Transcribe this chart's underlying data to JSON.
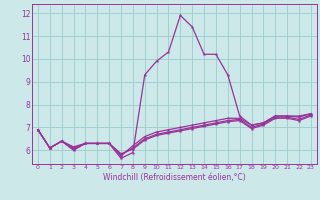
{
  "x": [
    0,
    1,
    2,
    3,
    4,
    5,
    6,
    7,
    8,
    9,
    10,
    11,
    12,
    13,
    14,
    15,
    16,
    17,
    18,
    19,
    20,
    21,
    22,
    23
  ],
  "line1": [
    6.9,
    6.1,
    6.4,
    6.0,
    6.3,
    6.3,
    6.3,
    5.65,
    5.9,
    9.3,
    9.9,
    10.3,
    11.9,
    11.4,
    10.2,
    10.2,
    9.3,
    7.5,
    7.1,
    7.2,
    7.5,
    7.5,
    7.5,
    7.6
  ],
  "line2": [
    6.9,
    6.1,
    6.4,
    6.05,
    6.3,
    6.3,
    6.3,
    5.75,
    6.2,
    6.6,
    6.8,
    6.9,
    7.0,
    7.1,
    7.2,
    7.3,
    7.4,
    7.4,
    7.1,
    7.2,
    7.5,
    7.5,
    7.45,
    7.6
  ],
  "line3": [
    6.9,
    6.1,
    6.4,
    6.1,
    6.3,
    6.3,
    6.3,
    5.8,
    6.1,
    6.5,
    6.7,
    6.8,
    6.9,
    7.0,
    7.1,
    7.2,
    7.3,
    7.35,
    7.0,
    7.15,
    7.45,
    7.45,
    7.35,
    7.55
  ],
  "line4": [
    6.9,
    6.1,
    6.4,
    6.15,
    6.3,
    6.3,
    6.3,
    5.85,
    6.05,
    6.45,
    6.65,
    6.75,
    6.85,
    6.95,
    7.05,
    7.15,
    7.25,
    7.3,
    6.95,
    7.1,
    7.4,
    7.4,
    7.3,
    7.5
  ],
  "line_color": "#993399",
  "bg_color": "#cce8e8",
  "grid_color": "#99cccc",
  "xlabel": "Windchill (Refroidissement éolien,°C)",
  "ylim": [
    5.4,
    12.4
  ],
  "xlim": [
    -0.5,
    23.5
  ],
  "yticks": [
    6,
    7,
    8,
    9,
    10,
    11,
    12
  ],
  "xticks": [
    0,
    1,
    2,
    3,
    4,
    5,
    6,
    7,
    8,
    9,
    10,
    11,
    12,
    13,
    14,
    15,
    16,
    17,
    18,
    19,
    20,
    21,
    22,
    23
  ]
}
